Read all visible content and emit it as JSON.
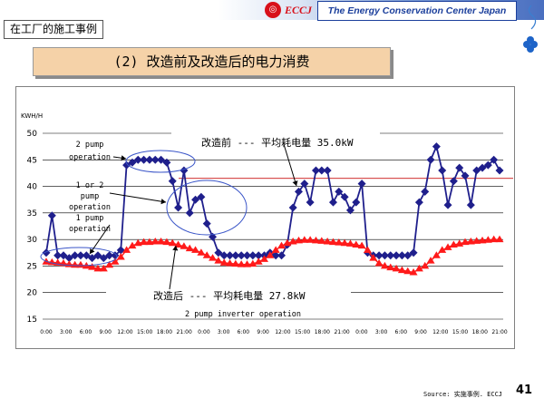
{
  "header": {
    "logo_text": "ECCJ",
    "organization": "The Energy Conservation Center Japan",
    "section_label": "在工厂的施工事例"
  },
  "slide": {
    "title": "(2) 改造前及改造后的电力消费",
    "source": "Source: 实施事例. ECCJ",
    "page_number": "41"
  },
  "colors": {
    "before_series": "#1f1f8c",
    "after_series": "#ff1a1a",
    "accent_title_bg": "#f5d2a8",
    "ellipse": "#3a55c8"
  },
  "chart_data": {
    "type": "line",
    "ylabel": "KWH/H",
    "ylim": [
      15,
      50
    ],
    "yticks": [
      15,
      20,
      25,
      30,
      35,
      40,
      45,
      50
    ],
    "grid": true,
    "xtick_labels": [
      "0:00",
      "3:00",
      "6:00",
      "9:00",
      "12:00",
      "15:00",
      "18:00",
      "21:00",
      "0:00",
      "3:00",
      "6:00",
      "9:00",
      "12:00",
      "15:00",
      "18:00",
      "21:00",
      "0:00",
      "3:00",
      "6:00",
      "9:00",
      "12:00",
      "15:00",
      "18:00",
      "21:00"
    ],
    "series": [
      {
        "name": "改造前",
        "marker": "diamond",
        "values": [
          27.5,
          34.5,
          27,
          27,
          26.5,
          27,
          27,
          27,
          26.5,
          27,
          26.5,
          27,
          27,
          28,
          44,
          44.5,
          45,
          45,
          45,
          45,
          45,
          44.5,
          41,
          36,
          43,
          35,
          37.5,
          38,
          33,
          30.5,
          27.5,
          27,
          27,
          27,
          27,
          27,
          27,
          27,
          27,
          27.5,
          27,
          27,
          29,
          36,
          39,
          40.5,
          37,
          43,
          43,
          43,
          37,
          39,
          38,
          35.5,
          37,
          40.5,
          27.5,
          27,
          27,
          27,
          27,
          27,
          27,
          27,
          27.5,
          37,
          39,
          45,
          47.5,
          43,
          36.5,
          41,
          43.5,
          42,
          36.5,
          43,
          43.5,
          44,
          45,
          43
        ]
      },
      {
        "name": "改造后",
        "marker": "triangle",
        "values": [
          25.8,
          25.7,
          25.6,
          25.5,
          25.3,
          25.2,
          25.2,
          25,
          24.8,
          24.5,
          24.5,
          25.2,
          25.8,
          26.7,
          28,
          28.8,
          29.3,
          29.5,
          29.5,
          29.6,
          29.6,
          29.5,
          29.3,
          29,
          28.7,
          28.3,
          28,
          27.5,
          27,
          26.5,
          26,
          25.6,
          25.5,
          25.4,
          25.3,
          25.3,
          25.4,
          25.8,
          26.3,
          27,
          28,
          28.8,
          29.3,
          29.6,
          29.8,
          29.9,
          29.9,
          29.8,
          29.7,
          29.6,
          29.5,
          29.4,
          29.3,
          29.2,
          29,
          28.8,
          28,
          26.5,
          25.5,
          25,
          24.7,
          24.5,
          24.2,
          24,
          23.8,
          24.5,
          25,
          26,
          27,
          28,
          28.5,
          29,
          29.2,
          29.5,
          29.6,
          29.7,
          29.8,
          29.9,
          30,
          30
        ]
      }
    ],
    "annotations": {
      "before_summary": "改造前  ---  平均耗电量 35.0kW",
      "after_summary": "改造后 ---  平均耗电量 27.8kW",
      "two_pump": "2 pump\noperation",
      "one_or_two_pump": "1 or 2\npump\noperation",
      "one_pump": "1 pump\noperation",
      "inverter": "2 pump inverter operation"
    }
  }
}
